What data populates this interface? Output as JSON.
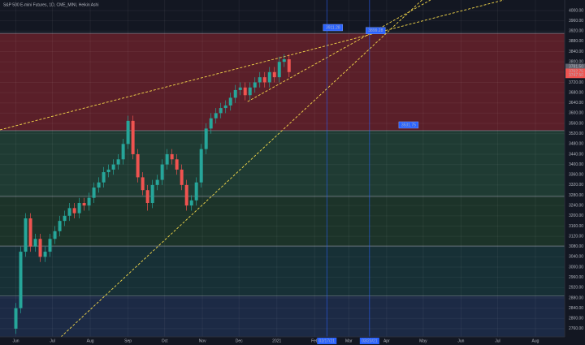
{
  "chart_data": {
    "type": "candlestick",
    "title": "S&P 500 E-mini Futures, 1D, CME_MINI, Heikin Ashi",
    "xlim": [
      -13,
      450
    ],
    "ylim": [
      2728,
      4041
    ],
    "xticks": [
      {
        "value": 0,
        "label": "Jun"
      },
      {
        "value": 30,
        "label": "Jul"
      },
      {
        "value": 61,
        "label": "Aug"
      },
      {
        "value": 92,
        "label": "Sep"
      },
      {
        "value": 122,
        "label": "Oct"
      },
      {
        "value": 153,
        "label": "Nov"
      },
      {
        "value": 183,
        "label": "Dec"
      },
      {
        "value": 214,
        "label": "2021"
      },
      {
        "value": 245,
        "label": "Feb"
      },
      {
        "value": 273,
        "label": "Mar"
      },
      {
        "value": 304,
        "label": "Apr"
      },
      {
        "value": 334,
        "label": "May"
      },
      {
        "value": 365,
        "label": "Jun"
      },
      {
        "value": 395,
        "label": "Jul"
      },
      {
        "value": 426,
        "label": "Aug"
      }
    ],
    "yticks": [
      {
        "value": 2760,
        "label": "2760.00"
      },
      {
        "value": 2800,
        "label": "2800.00"
      },
      {
        "value": 2840,
        "label": "2840.00"
      },
      {
        "value": 2880,
        "label": "2880.00"
      },
      {
        "value": 2920,
        "label": "2920.00"
      },
      {
        "value": 2960,
        "label": "2960.00"
      },
      {
        "value": 3000,
        "label": "3000.00"
      },
      {
        "value": 3040,
        "label": "3040.00"
      },
      {
        "value": 3080,
        "label": "3080.00"
      },
      {
        "value": 3120,
        "label": "3120.00"
      },
      {
        "value": 3160,
        "label": "3160.00"
      },
      {
        "value": 3200,
        "label": "3200.00"
      },
      {
        "value": 3240,
        "label": "3240.00"
      },
      {
        "value": 3280,
        "label": "3280.00"
      },
      {
        "value": 3320,
        "label": "3320.00"
      },
      {
        "value": 3360,
        "label": "3360.00"
      },
      {
        "value": 3400,
        "label": "3400.00"
      },
      {
        "value": 3440,
        "label": "3440.00"
      },
      {
        "value": 3480,
        "label": "3480.00"
      },
      {
        "value": 3520,
        "label": "3520.00"
      },
      {
        "value": 3560,
        "label": "3560.00"
      },
      {
        "value": 3600,
        "label": "3600.00"
      },
      {
        "value": 3640,
        "label": "3640.00"
      },
      {
        "value": 3680,
        "label": "3680.00"
      },
      {
        "value": 3720,
        "label": "3720.00"
      },
      {
        "value": 3760,
        "label": "3760.00"
      },
      {
        "value": 3800,
        "label": "3800.00"
      },
      {
        "value": 3840,
        "label": "3840.00"
      },
      {
        "value": 3880,
        "label": "3880.00"
      },
      {
        "value": 3920,
        "label": "3920.00"
      },
      {
        "value": 3960,
        "label": "3960.00"
      },
      {
        "value": 4000,
        "label": "4000.00"
      }
    ],
    "up_color": "#26a69a",
    "down_color": "#ef5350",
    "zones": [
      {
        "from": 3911,
        "to": 3531.75,
        "color": "#5a1f29"
      },
      {
        "from": 3531.75,
        "to": 3275,
        "color": "#1f3b33"
      },
      {
        "from": 3275,
        "to": 3082,
        "color": "#1c3329"
      },
      {
        "from": 3082,
        "to": 2887,
        "color": "#173036"
      },
      {
        "from": 2887,
        "to": 2728,
        "color": "#1c2a45"
      }
    ],
    "trendlines": [
      {
        "x": [
          37,
          333
        ],
        "y": [
          2728,
          4041
        ]
      },
      {
        "x": [
          -13,
          400
        ],
        "y": [
          3535,
          4041
        ]
      },
      {
        "x": [
          190,
          340
        ],
        "y": [
          3645,
          4041
        ]
      }
    ],
    "markers": [
      {
        "x": 255,
        "label": "02/17/21"
      },
      {
        "x": 290,
        "label": "03/23/21"
      }
    ],
    "callouts": [
      {
        "x": 260,
        "y": 3911.28,
        "label": "3911.28"
      },
      {
        "x": 295,
        "y": 3899.28,
        "label": "3899.28"
      },
      {
        "x": 322,
        "y": 3531.75,
        "label": "3531.75"
      }
    ],
    "price_labels": [
      {
        "value": 3781.5,
        "label": "3781.50",
        "color": "#5d606b"
      },
      {
        "value": 3762.75,
        "label": "3762.75",
        "color": "#ef5350"
      },
      {
        "value": 3747.5,
        "label": "3747.50",
        "color": "#ef5350"
      }
    ],
    "candles": [
      [
        0,
        2760,
        2860,
        2740,
        2840
      ],
      [
        4,
        2840,
        3080,
        2820,
        3060
      ],
      [
        8,
        3060,
        3210,
        3040,
        3190
      ],
      [
        12,
        3190,
        3210,
        3060,
        3080
      ],
      [
        16,
        3080,
        3130,
        3060,
        3110
      ],
      [
        20,
        3110,
        3130,
        3020,
        3040
      ],
      [
        24,
        3040,
        3080,
        3020,
        3060
      ],
      [
        28,
        3060,
        3130,
        3040,
        3110
      ],
      [
        32,
        3110,
        3160,
        3090,
        3140
      ],
      [
        36,
        3140,
        3200,
        3120,
        3180
      ],
      [
        40,
        3180,
        3220,
        3160,
        3200
      ],
      [
        44,
        3200,
        3250,
        3180,
        3230
      ],
      [
        48,
        3230,
        3250,
        3190,
        3210
      ],
      [
        52,
        3210,
        3270,
        3190,
        3250
      ],
      [
        56,
        3250,
        3270,
        3220,
        3240
      ],
      [
        60,
        3240,
        3290,
        3220,
        3270
      ],
      [
        64,
        3270,
        3330,
        3250,
        3310
      ],
      [
        68,
        3310,
        3350,
        3290,
        3330
      ],
      [
        72,
        3330,
        3390,
        3310,
        3370
      ],
      [
        76,
        3370,
        3400,
        3350,
        3380
      ],
      [
        80,
        3380,
        3420,
        3360,
        3400
      ],
      [
        84,
        3400,
        3440,
        3380,
        3420
      ],
      [
        88,
        3420,
        3500,
        3400,
        3480
      ],
      [
        92,
        3480,
        3590,
        3460,
        3570
      ],
      [
        96,
        3570,
        3590,
        3420,
        3440
      ],
      [
        100,
        3440,
        3460,
        3330,
        3350
      ],
      [
        104,
        3350,
        3370,
        3280,
        3300
      ],
      [
        108,
        3300,
        3320,
        3220,
        3250
      ],
      [
        112,
        3250,
        3340,
        3230,
        3320
      ],
      [
        116,
        3320,
        3360,
        3300,
        3340
      ],
      [
        120,
        3340,
        3420,
        3320,
        3400
      ],
      [
        124,
        3400,
        3460,
        3380,
        3440
      ],
      [
        128,
        3440,
        3460,
        3400,
        3420
      ],
      [
        132,
        3420,
        3440,
        3360,
        3380
      ],
      [
        136,
        3380,
        3400,
        3300,
        3320
      ],
      [
        140,
        3320,
        3340,
        3220,
        3240
      ],
      [
        144,
        3240,
        3280,
        3220,
        3260
      ],
      [
        148,
        3260,
        3350,
        3240,
        3330
      ],
      [
        152,
        3330,
        3480,
        3310,
        3460
      ],
      [
        156,
        3460,
        3560,
        3440,
        3540
      ],
      [
        160,
        3540,
        3600,
        3520,
        3580
      ],
      [
        164,
        3580,
        3620,
        3560,
        3600
      ],
      [
        168,
        3600,
        3640,
        3580,
        3620
      ],
      [
        172,
        3620,
        3650,
        3600,
        3630
      ],
      [
        176,
        3630,
        3680,
        3610,
        3660
      ],
      [
        180,
        3660,
        3710,
        3640,
        3690
      ],
      [
        184,
        3690,
        3720,
        3670,
        3700
      ],
      [
        188,
        3700,
        3720,
        3650,
        3670
      ],
      [
        192,
        3670,
        3720,
        3650,
        3700
      ],
      [
        196,
        3700,
        3740,
        3680,
        3720
      ],
      [
        200,
        3720,
        3760,
        3700,
        3740
      ],
      [
        204,
        3740,
        3760,
        3700,
        3720
      ],
      [
        208,
        3720,
        3780,
        3700,
        3760
      ],
      [
        212,
        3760,
        3780,
        3720,
        3740
      ],
      [
        216,
        3740,
        3820,
        3720,
        3800
      ],
      [
        220,
        3800,
        3830,
        3780,
        3810
      ],
      [
        224,
        3810,
        3830,
        3740,
        3760
      ]
    ]
  }
}
